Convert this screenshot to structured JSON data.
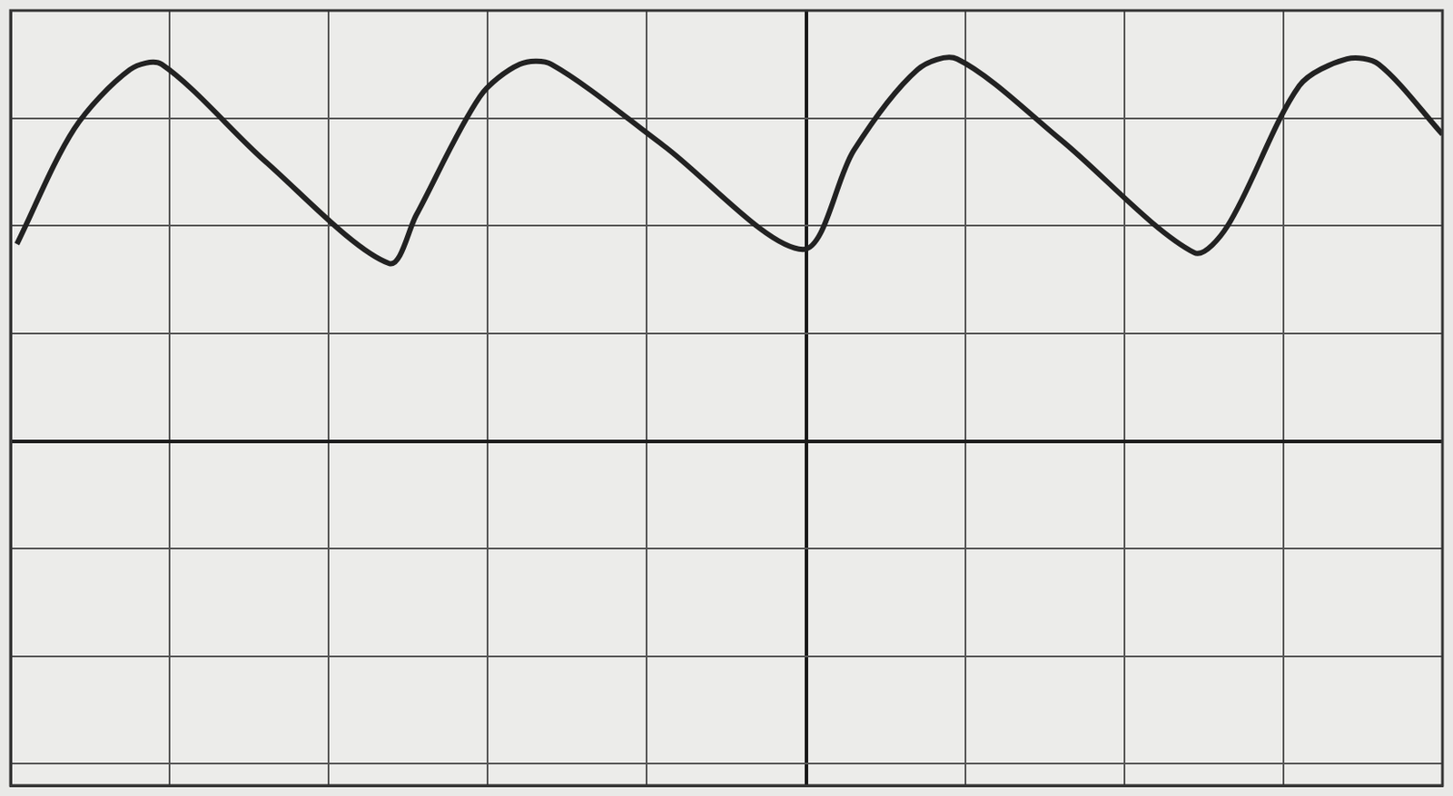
{
  "chart_data": {
    "type": "line",
    "x": [
      -4.96,
      -4.6,
      -4.25,
      -4.05,
      -3.4,
      -2.62,
      -2.45,
      -2.05,
      -1.8,
      -1.6,
      -0.9,
      -0.02,
      0.3,
      0.7,
      0.95,
      1.6,
      2.44,
      2.65,
      3.1,
      3.4,
      3.6,
      4.0
    ],
    "values": [
      1.83,
      2.9,
      3.45,
      3.5,
      2.6,
      1.65,
      2.1,
      3.2,
      3.5,
      3.5,
      2.75,
      1.78,
      2.7,
      3.45,
      3.55,
      2.8,
      1.75,
      2.0,
      3.3,
      3.55,
      3.5,
      2.85
    ],
    "color": "#222222",
    "xlim": [
      -5,
      4
    ],
    "xticks": [
      -5,
      -4,
      -3,
      -2,
      -1,
      0,
      1,
      2,
      3,
      4
    ],
    "ylim": [
      -3.2,
      4
    ],
    "yticks": [
      -3,
      -2,
      -1,
      0,
      1,
      2,
      3,
      4
    ],
    "grid": true,
    "tick_labels": false
  }
}
